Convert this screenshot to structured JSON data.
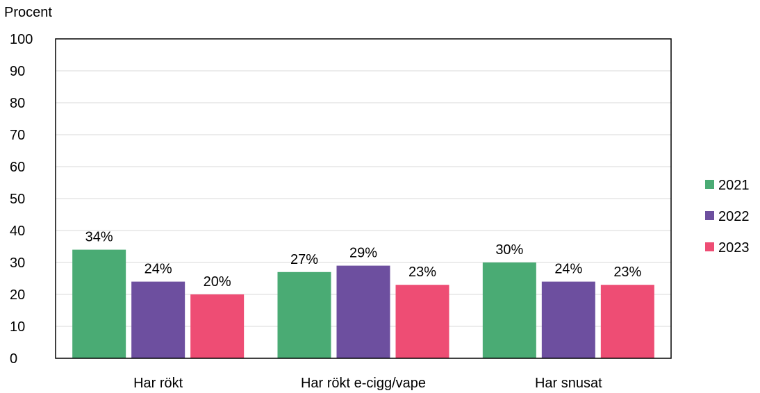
{
  "chart_data": {
    "type": "bar",
    "title": "",
    "xlabel": "",
    "ylabel": "Procent",
    "ylim": [
      0,
      100
    ],
    "yticks": [
      0,
      10,
      20,
      30,
      40,
      50,
      60,
      70,
      80,
      90,
      100
    ],
    "grid": true,
    "legend_position": "right",
    "categories": [
      "Har rökt",
      "Har rökt e-cigg/vape",
      "Har snusat"
    ],
    "series": [
      {
        "name": "2021",
        "color": "#4aab74",
        "values": [
          34,
          27,
          30
        ],
        "labels": [
          "34%",
          "27%",
          "30%"
        ]
      },
      {
        "name": "2022",
        "color": "#6d4f9f",
        "values": [
          24,
          29,
          24
        ],
        "labels": [
          "24%",
          "29%",
          "24%"
        ]
      },
      {
        "name": "2023",
        "color": "#ee4d74",
        "values": [
          20,
          23,
          23
        ],
        "labels": [
          "20%",
          "23%",
          "23%"
        ]
      }
    ]
  }
}
